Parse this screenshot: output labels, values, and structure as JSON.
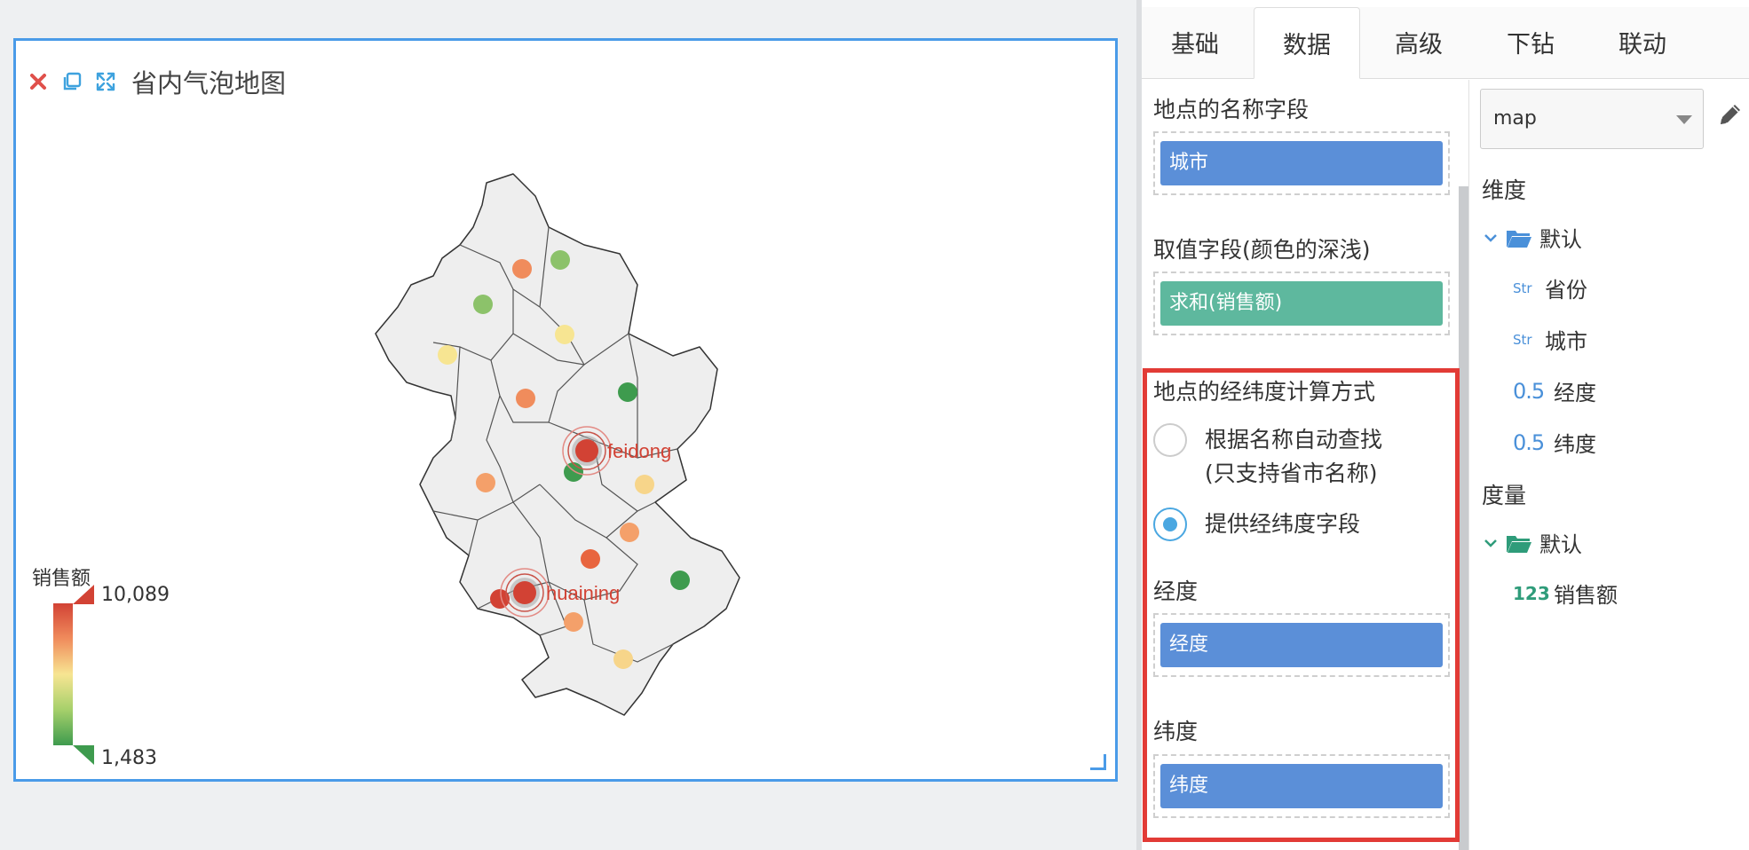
{
  "widget": {
    "title": "省内气泡地图",
    "icons": [
      "close-icon",
      "copy-icon",
      "expand-icon"
    ],
    "map": {
      "labels": [
        "feidong",
        "huaining"
      ]
    },
    "legend": {
      "title": "销售额",
      "max": "10,089",
      "min": "1,483",
      "colors": [
        "#d24234",
        "#f08c5c",
        "#f7e592",
        "#a6d06b",
        "#3e9b4e"
      ]
    }
  },
  "panel": {
    "tabs": [
      {
        "label": "基础",
        "active": false
      },
      {
        "label": "数据",
        "active": true
      },
      {
        "label": "高级",
        "active": false
      },
      {
        "label": "下钻",
        "active": false
      },
      {
        "label": "联动",
        "active": false
      }
    ],
    "name_field": {
      "label": "地点的名称字段",
      "chip": "城市"
    },
    "value_field": {
      "label": "取值字段(颜色的深浅)",
      "chip": "求和(销售额)"
    },
    "coord_method": {
      "label": "地点的经纬度计算方式",
      "option_auto_line1": "根据名称自动查找",
      "option_auto_line2": "(只支持省市名称)",
      "option_manual": "提供经纬度字段",
      "selected": "提供经纬度字段"
    },
    "longitude": {
      "label": "经度",
      "chip": "经度"
    },
    "latitude": {
      "label": "纬度",
      "chip": "纬度"
    }
  },
  "field_list": {
    "datasource": "map",
    "dimensions_heading": "维度",
    "dimensions_folder": "默认",
    "dimensions": [
      {
        "type": "Str",
        "name": "省份"
      },
      {
        "type": "Str",
        "name": "城市"
      },
      {
        "type": "0.5",
        "name": "经度"
      },
      {
        "type": "0.5",
        "name": "纬度"
      }
    ],
    "measures_heading": "度量",
    "measures_folder": "默认",
    "measures": [
      {
        "type": "123",
        "name": "销售额"
      }
    ]
  },
  "accent_color": "#4a9be8",
  "highlight_color": "#e23b36"
}
